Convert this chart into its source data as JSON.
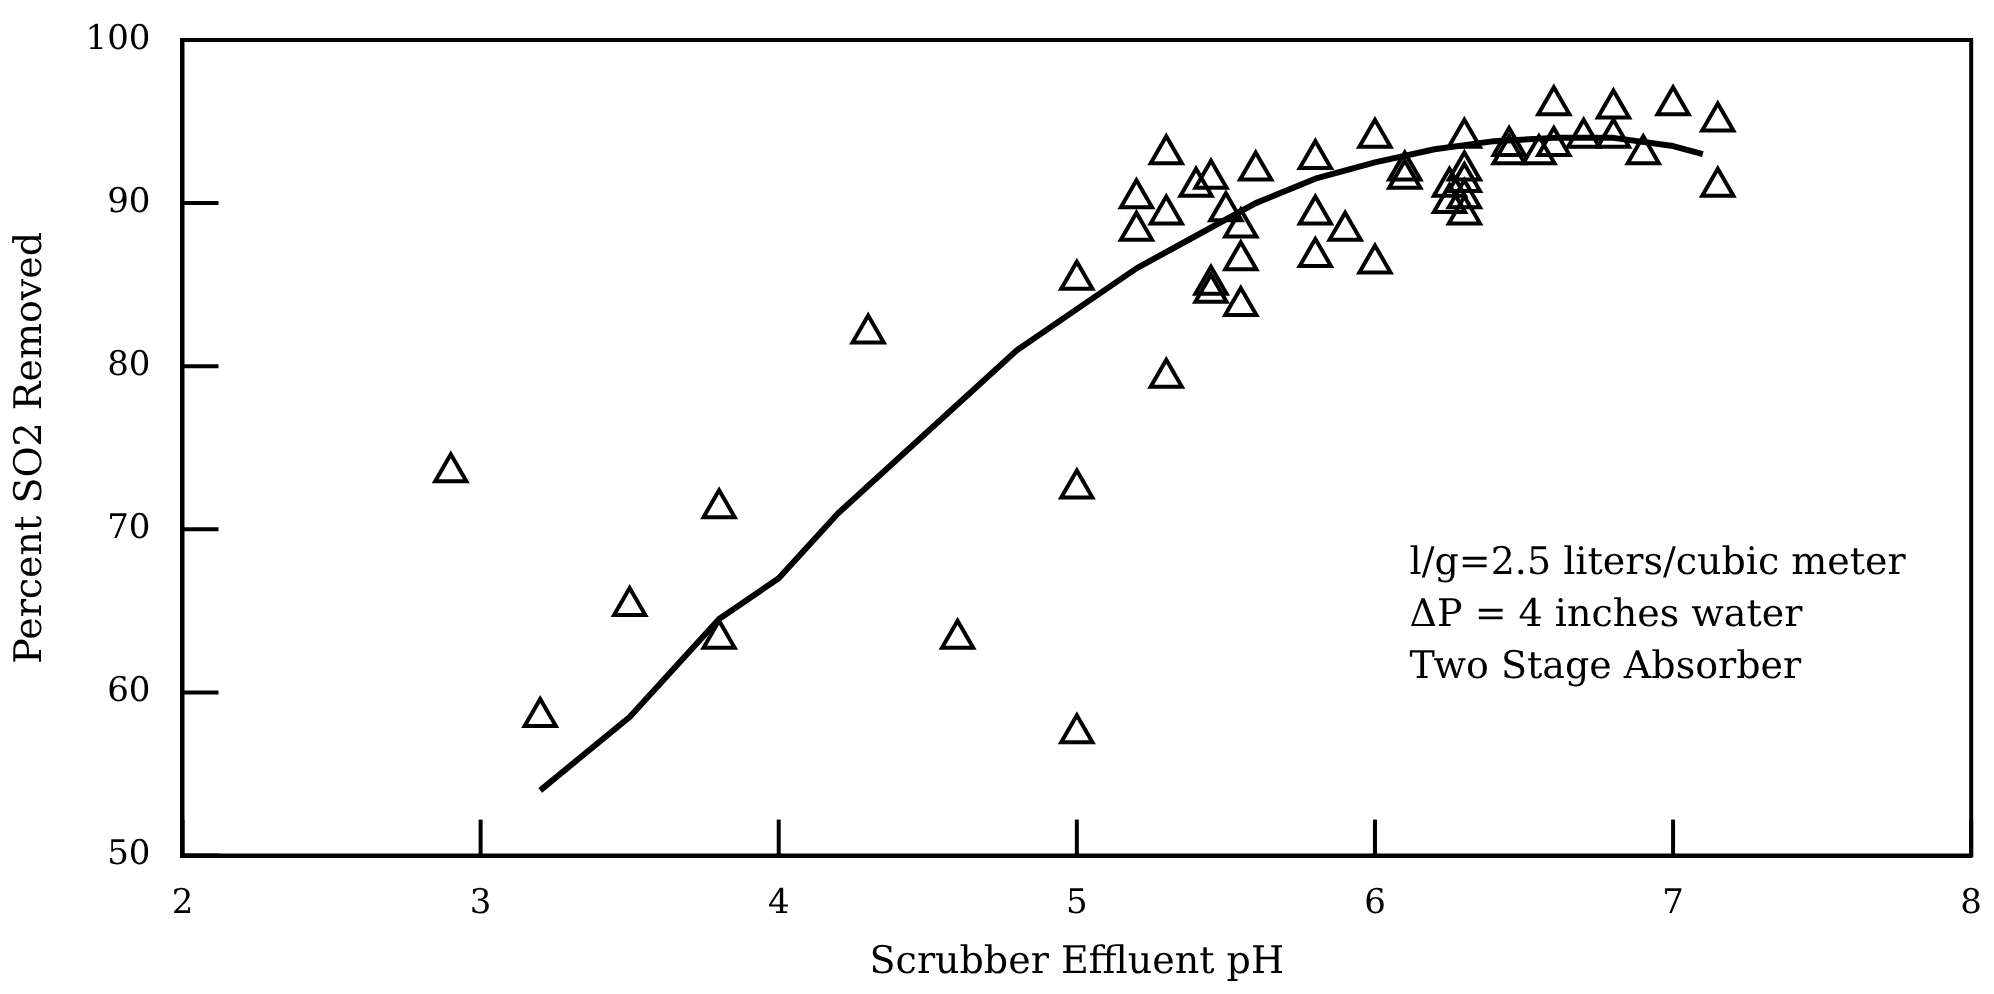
{
  "chart_data": {
    "type": "scatter",
    "xlabel": "Scrubber Effluent pH",
    "ylabel": "Percent SO2 Removed",
    "xlim": [
      2,
      8
    ],
    "xticks": [
      2,
      3,
      4,
      5,
      6,
      7,
      8
    ],
    "ylim": [
      50,
      100
    ],
    "yticks": [
      50,
      60,
      70,
      80,
      90,
      100
    ],
    "grid": false,
    "legend": false,
    "marker": "triangle",
    "annotations": [
      "l/g=2.5 liters/cubic meter",
      "ΔP = 4 inches water",
      "Two Stage Absorber"
    ],
    "series": [
      {
        "color": "#000000",
        "x": [
          2.9,
          3.2,
          3.5,
          3.8,
          3.8,
          4.3,
          4.6,
          5.0,
          5.0,
          5.0,
          5.2,
          5.2,
          5.3,
          5.3,
          5.3,
          5.4,
          5.45,
          5.45,
          5.45,
          5.5,
          5.55,
          5.55,
          5.55,
          5.6,
          5.8,
          5.8,
          5.8,
          5.9,
          6.0,
          6.0,
          6.1,
          6.1,
          6.25,
          6.25,
          6.3,
          6.3,
          6.3,
          6.3,
          6.3,
          6.45,
          6.45,
          6.55,
          6.6,
          6.6,
          6.7,
          6.8,
          6.8,
          6.9,
          7.0,
          7.15,
          7.15
        ],
        "values": [
          73.5,
          58.5,
          65.3,
          71.3,
          63.3,
          82,
          63.3,
          85.3,
          72.5,
          57.5,
          90.3,
          88.3,
          93,
          89.3,
          79.3,
          91,
          91.5,
          85,
          84.5,
          89.5,
          88.5,
          86.5,
          83.7,
          92,
          92.7,
          89.3,
          86.7,
          88.3,
          94,
          86.3,
          92,
          91.5,
          91,
          90,
          94,
          92,
          91.3,
          90.3,
          89.3,
          93.5,
          93,
          93,
          96,
          93.5,
          94,
          95.8,
          94,
          93,
          96,
          95,
          91
        ]
      },
      {
        "type": "line",
        "color": "#000000",
        "marker": "none",
        "x": [
          3.2,
          3.5,
          3.8,
          4.0,
          4.2,
          4.5,
          4.8,
          5.0,
          5.2,
          5.4,
          5.6,
          5.8,
          6.0,
          6.2,
          6.4,
          6.6,
          6.8,
          7.0,
          7.1
        ],
        "values": [
          54,
          58.5,
          64.5,
          67,
          71,
          76,
          81,
          83.5,
          86,
          88,
          90,
          91.5,
          92.5,
          93.3,
          93.8,
          94,
          94,
          93.5,
          93
        ]
      }
    ]
  }
}
